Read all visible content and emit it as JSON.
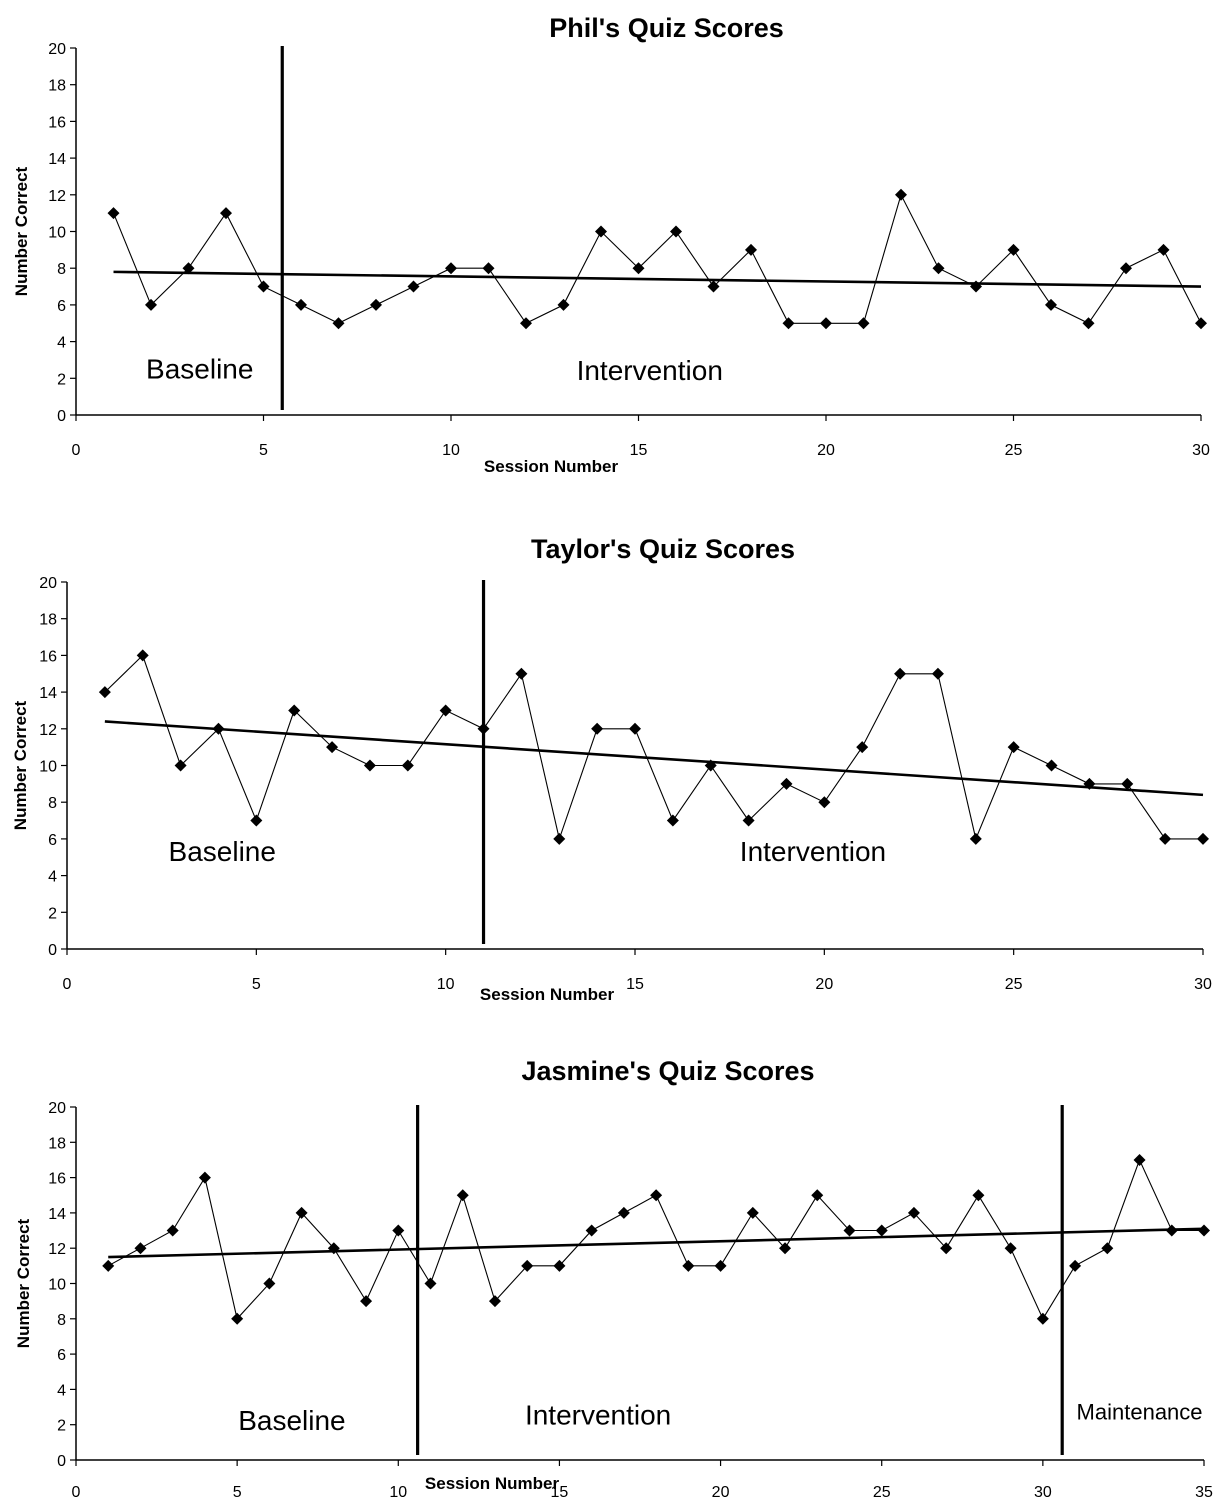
{
  "chart_data": [
    {
      "type": "line",
      "title": "Phil's Quiz Scores",
      "xlabel": "Session Number",
      "ylabel": "Number Correct",
      "xlim": [
        0,
        30
      ],
      "ylim": [
        0,
        20
      ],
      "x_ticks": [
        0,
        5,
        10,
        15,
        20,
        25,
        30
      ],
      "y_ticks": [
        0,
        2,
        4,
        6,
        8,
        10,
        12,
        14,
        16,
        18,
        20
      ],
      "grid": false,
      "series": [
        {
          "x": [
            1,
            2,
            3,
            4,
            5,
            6,
            7,
            8,
            9,
            10,
            11,
            12,
            13,
            14,
            15,
            16,
            17,
            18,
            19,
            20,
            21,
            22,
            23,
            24,
            25,
            26,
            27,
            28,
            29,
            30
          ],
          "values": [
            11,
            6,
            8,
            11,
            7,
            6,
            5,
            6,
            7,
            8,
            8,
            5,
            6,
            10,
            8,
            10,
            7,
            9,
            5,
            5,
            5,
            12,
            8,
            7,
            9,
            6,
            5,
            8,
            9,
            5
          ],
          "marker": "diamond"
        }
      ],
      "trendline": {
        "x": [
          1,
          30
        ],
        "y": [
          7.8,
          7.0
        ]
      },
      "phase_lines": [
        5.5
      ],
      "phase_labels": [
        {
          "text": "Baseline",
          "x": 3.3,
          "y": 2.0
        },
        {
          "text": "Intervention",
          "x": 15.3,
          "y": 1.9
        }
      ]
    },
    {
      "type": "line",
      "title": "Taylor's Quiz Scores",
      "xlabel": "Session Number",
      "ylabel": "Number Correct",
      "xlim": [
        0,
        30
      ],
      "ylim": [
        0,
        20
      ],
      "x_ticks": [
        0,
        5,
        10,
        15,
        20,
        25,
        30
      ],
      "y_ticks": [
        0,
        2,
        4,
        6,
        8,
        10,
        12,
        14,
        16,
        18,
        20
      ],
      "grid": false,
      "series": [
        {
          "x": [
            1,
            2,
            3,
            4,
            5,
            6,
            7,
            8,
            9,
            10,
            11,
            12,
            13,
            14,
            15,
            16,
            17,
            18,
            19,
            20,
            21,
            22,
            23,
            24,
            25,
            26,
            27,
            28,
            29,
            30
          ],
          "values": [
            14,
            16,
            10,
            12,
            7,
            13,
            11,
            10,
            10,
            13,
            12,
            15,
            6,
            12,
            12,
            7,
            10,
            7,
            9,
            8,
            11,
            15,
            15,
            6,
            11,
            10,
            9,
            9,
            6,
            6
          ],
          "marker": "diamond"
        }
      ],
      "trendline": {
        "x": [
          1,
          30
        ],
        "y": [
          12.4,
          8.4
        ]
      },
      "phase_lines": [
        11
      ],
      "phase_labels": [
        {
          "text": "Baseline",
          "x": 4.1,
          "y": 4.8
        },
        {
          "text": "Intervention",
          "x": 19.7,
          "y": 4.8
        }
      ]
    },
    {
      "type": "line",
      "title": "Jasmine's Quiz Scores",
      "xlabel": "Session Number",
      "ylabel": "Number Correct",
      "xlim": [
        0,
        35
      ],
      "ylim": [
        0,
        20
      ],
      "x_ticks": [
        0,
        5,
        10,
        15,
        20,
        25,
        30,
        35
      ],
      "y_ticks": [
        0,
        2,
        4,
        6,
        8,
        10,
        12,
        14,
        16,
        18,
        20
      ],
      "grid": false,
      "series": [
        {
          "x": [
            1,
            2,
            3,
            4,
            5,
            6,
            7,
            8,
            9,
            10,
            11,
            12,
            13,
            14,
            15,
            16,
            17,
            18,
            19,
            20,
            21,
            22,
            23,
            24,
            25,
            26,
            27,
            28,
            29,
            30,
            31,
            32,
            33,
            34,
            35
          ],
          "values": [
            11,
            12,
            13,
            16,
            8,
            10,
            14,
            12,
            9,
            13,
            10,
            15,
            9,
            11,
            11,
            13,
            14,
            15,
            11,
            11,
            14,
            12,
            15,
            13,
            13,
            14,
            12,
            15,
            12,
            8,
            11,
            12,
            17,
            13,
            13
          ],
          "marker": "diamond"
        }
      ],
      "trendline": {
        "x": [
          1,
          35
        ],
        "y": [
          11.5,
          13.1
        ]
      },
      "phase_lines": [
        10.6,
        30.6
      ],
      "phase_labels": [
        {
          "text": "Baseline",
          "x": 6.7,
          "y": 1.7
        },
        {
          "text": "Intervention",
          "x": 16.2,
          "y": 2.0
        },
        {
          "text": "Maintenance",
          "x": 33.0,
          "y": 2.3
        }
      ]
    }
  ]
}
